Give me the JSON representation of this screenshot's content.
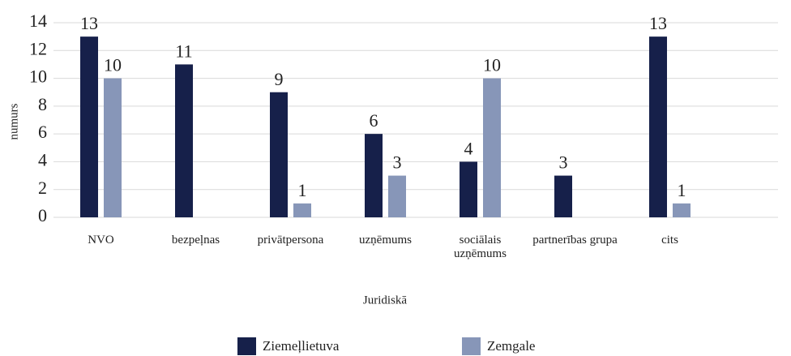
{
  "chart_data": {
    "type": "bar",
    "x_label": "Juridiskā",
    "y_label": "numurs",
    "categories": [
      "NVO",
      "bezpeļnas",
      "privātpersona",
      "uzņēmums",
      "sociālais uzņēmums",
      "partnerības grupa",
      "cits"
    ],
    "series": [
      {
        "name": "Ziemeļlietuva",
        "color": "#16204a",
        "values": [
          13,
          11,
          9,
          6,
          4,
          3,
          13
        ]
      },
      {
        "name": "Zemgale",
        "color": "#8796b8",
        "values": [
          10,
          null,
          1,
          3,
          10,
          null,
          1
        ]
      }
    ],
    "ylim": [
      0,
      14
    ],
    "yticks": [
      0,
      2,
      4,
      6,
      8,
      10,
      12,
      14
    ],
    "grid": true,
    "legend": "bottom"
  }
}
